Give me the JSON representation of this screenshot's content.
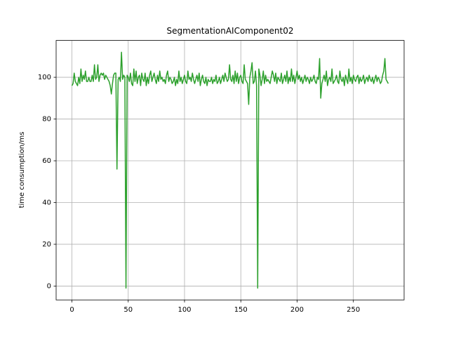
{
  "chart_data": {
    "type": "line",
    "title": "SegmentationAIComponent02",
    "ylabel": "time consumption/ms",
    "x": [
      0,
      1,
      2,
      3,
      4,
      5,
      6,
      7,
      8,
      9,
      10,
      11,
      12,
      13,
      14,
      15,
      16,
      17,
      18,
      19,
      20,
      21,
      22,
      23,
      24,
      25,
      26,
      27,
      28,
      29,
      30,
      31,
      32,
      33,
      34,
      35,
      36,
      37,
      38,
      39,
      40,
      41,
      42,
      43,
      44,
      45,
      46,
      47,
      48,
      49,
      50,
      51,
      52,
      53,
      54,
      55,
      56,
      57,
      58,
      59,
      60,
      61,
      62,
      63,
      64,
      65,
      66,
      67,
      68,
      69,
      70,
      71,
      72,
      73,
      74,
      75,
      76,
      77,
      78,
      79,
      80,
      81,
      82,
      83,
      84,
      85,
      86,
      87,
      88,
      89,
      90,
      91,
      92,
      93,
      94,
      95,
      96,
      97,
      98,
      99,
      100,
      101,
      102,
      103,
      104,
      105,
      106,
      107,
      108,
      109,
      110,
      111,
      112,
      113,
      114,
      115,
      116,
      117,
      118,
      119,
      120,
      121,
      122,
      123,
      124,
      125,
      126,
      127,
      128,
      129,
      130,
      131,
      132,
      133,
      134,
      135,
      136,
      137,
      138,
      139,
      140,
      141,
      142,
      143,
      144,
      145,
      146,
      147,
      148,
      149,
      150,
      151,
      152,
      153,
      154,
      155,
      156,
      157,
      158,
      159,
      160,
      161,
      162,
      163,
      164,
      165,
      166,
      167,
      168,
      169,
      170,
      171,
      172,
      173,
      174,
      175,
      176,
      177,
      178,
      179,
      180,
      181,
      182,
      183,
      184,
      185,
      186,
      187,
      188,
      189,
      190,
      191,
      192,
      193,
      194,
      195,
      196,
      197,
      198,
      199,
      200,
      201,
      202,
      203,
      204,
      205,
      206,
      207,
      208,
      209,
      210,
      211,
      212,
      213,
      214,
      215,
      216,
      217,
      218,
      219,
      220,
      221,
      222,
      223,
      224,
      225,
      226,
      227,
      228,
      229,
      230,
      231,
      232,
      233,
      234,
      235,
      236,
      237,
      238,
      239,
      240,
      241,
      242,
      243,
      244,
      245,
      246,
      247,
      248,
      249,
      250,
      251,
      252,
      253,
      254,
      255,
      256,
      257,
      258,
      259,
      260,
      261,
      262,
      263,
      264,
      265,
      266,
      267,
      268,
      269,
      270,
      271,
      272,
      273,
      274,
      275,
      276,
      277,
      278,
      279,
      280,
      281
    ],
    "series": [
      {
        "color": "#2ca02c",
        "values": [
          96,
          97,
          102,
          98,
          97,
          96,
          100,
          97,
          104,
          98,
          101,
          99,
          103,
          98,
          98,
          100,
          98,
          98,
          101,
          98,
          106,
          99,
          100,
          106,
          98,
          101,
          102,
          101,
          102,
          99,
          101,
          100,
          99,
          98,
          96,
          92,
          97,
          101,
          102,
          102,
          56,
          99,
          100,
          98,
          112,
          99,
          101,
          100,
          -1,
          101,
          100,
          98,
          102,
          97,
          96,
          104,
          98,
          103,
          97,
          100,
          101,
          96,
          102,
          99,
          98,
          102,
          96,
          100,
          97,
          101,
          103,
          98,
          100,
          102,
          99,
          97,
          101,
          98,
          103,
          99,
          100,
          98,
          99,
          97,
          101,
          103,
          98,
          100,
          99,
          97,
          98,
          100,
          96,
          99,
          97,
          103,
          98,
          100,
          97,
          99,
          101,
          98,
          97,
          103,
          99,
          100,
          98,
          102,
          99,
          97,
          99,
          101,
          98,
          102,
          96,
          99,
          101,
          98,
          97,
          100,
          96,
          99,
          98,
          98,
          100,
          97,
          99,
          98,
          101,
          97,
          98,
          100,
          97,
          99,
          101,
          98,
          102,
          100,
          98,
          99,
          106,
          99,
          98,
          101,
          97,
          103,
          98,
          102,
          97,
          100,
          101,
          98,
          97,
          106,
          99,
          98,
          97,
          87,
          100,
          103,
          107,
          97,
          98,
          103,
          96,
          -1,
          104,
          101,
          96,
          99,
          103,
          97,
          101,
          98,
          99,
          98,
          97,
          100,
          103,
          101,
          98,
          102,
          97,
          100,
          99,
          98,
          102,
          97,
          99,
          101,
          98,
          103,
          97,
          100,
          98,
          104,
          98,
          101,
          97,
          100,
          103,
          99,
          101,
          98,
          100,
          97,
          99,
          101,
          98,
          100,
          99,
          97,
          100,
          98,
          99,
          101,
          98,
          97,
          100,
          99,
          109,
          90,
          97,
          99,
          101,
          98,
          103,
          96,
          99,
          100,
          98,
          104,
          97,
          98,
          99,
          101,
          98,
          97,
          103,
          99,
          98,
          100,
          96,
          101,
          99,
          97,
          104,
          98,
          100,
          97,
          101,
          99,
          98,
          100,
          101,
          97,
          100,
          98,
          99,
          101,
          97,
          99,
          100,
          98,
          101,
          99,
          98,
          100,
          97,
          99,
          101,
          98,
          100,
          99,
          97,
          98,
          101,
          103,
          109,
          99,
          98,
          97
        ]
      }
    ],
    "xlim": [
      -14.05,
      295.05
    ],
    "ylim": [
      -6.65,
      117.65
    ],
    "xticks": [
      0,
      50,
      100,
      150,
      200,
      250
    ],
    "yticks": [
      0,
      20,
      40,
      60,
      80,
      100
    ],
    "grid": true
  }
}
